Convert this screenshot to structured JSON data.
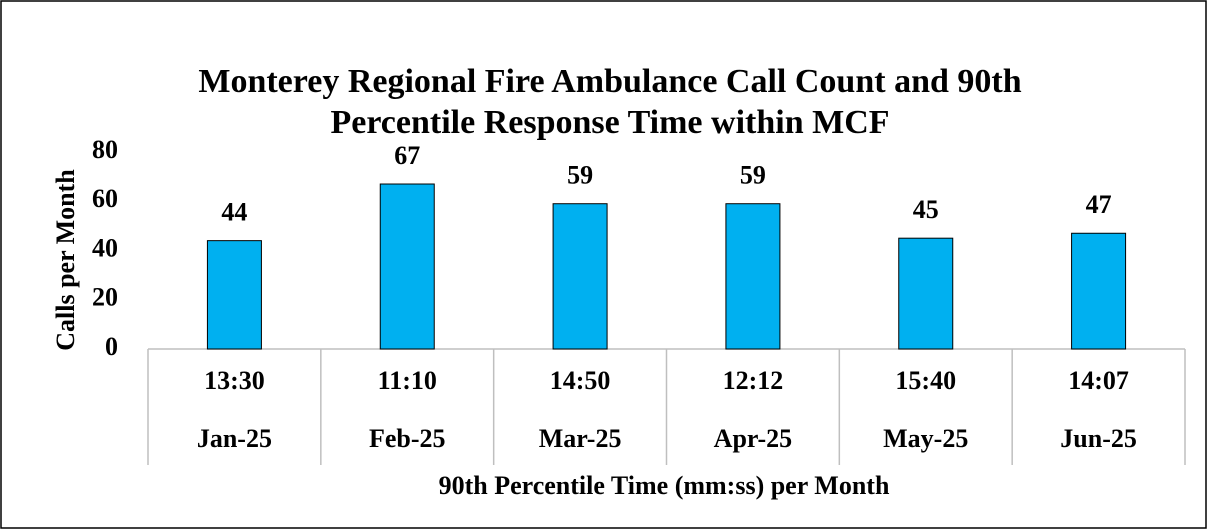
{
  "chart_data": {
    "type": "bar",
    "title": "Monterey Regional Fire Ambulance Call Count and 90th Percentile Response Time within MCF",
    "categories": [
      "Jan-25",
      "Feb-25",
      "Mar-25",
      "Apr-25",
      "May-25",
      "Jun-25"
    ],
    "subcategories": [
      "13:30",
      "11:10",
      "14:50",
      "12:12",
      "15:40",
      "14:07"
    ],
    "values": [
      44,
      67,
      59,
      59,
      45,
      47
    ],
    "color": "#00b0f0",
    "ylim": [
      0,
      80
    ],
    "yticks": [
      0,
      20,
      40,
      60,
      80
    ],
    "grid": false,
    "y_label": "Calls per Month",
    "x_label": "90th Percentile Time (mm:ss) per Month"
  }
}
